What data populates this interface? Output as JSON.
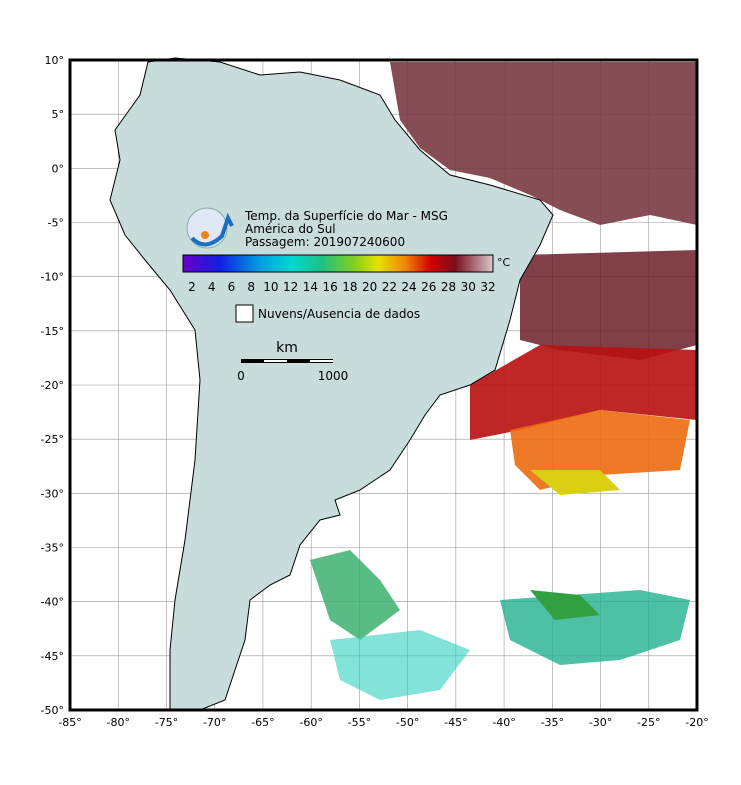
{
  "map": {
    "lat_labels": [
      "10°",
      "5°",
      "0°",
      "-5°",
      "-10°",
      "-15°",
      "-20°",
      "-25°",
      "-30°",
      "-35°",
      "-40°",
      "-45°",
      "-50°"
    ],
    "lon_labels": [
      "-85°",
      "-80°",
      "-75°",
      "-70°",
      "-65°",
      "-60°",
      "-55°",
      "-50°",
      "-45°",
      "-40°",
      "-35°",
      "-30°",
      "-25°",
      "-20°"
    ]
  },
  "legend": {
    "title": "Temp. da Superfície do Mar - MSG",
    "region": "América do Sul",
    "pass": "Passagem: 201907240600",
    "colorbar_ticks": [
      2,
      4,
      6,
      8,
      10,
      12,
      14,
      16,
      18,
      20,
      22,
      24,
      26,
      28,
      30,
      32
    ],
    "unit": "°C",
    "clouds": "Nuvens/Ausencia de dados"
  },
  "scale": {
    "unit": "km",
    "start": "0",
    "end": "1000"
  }
}
